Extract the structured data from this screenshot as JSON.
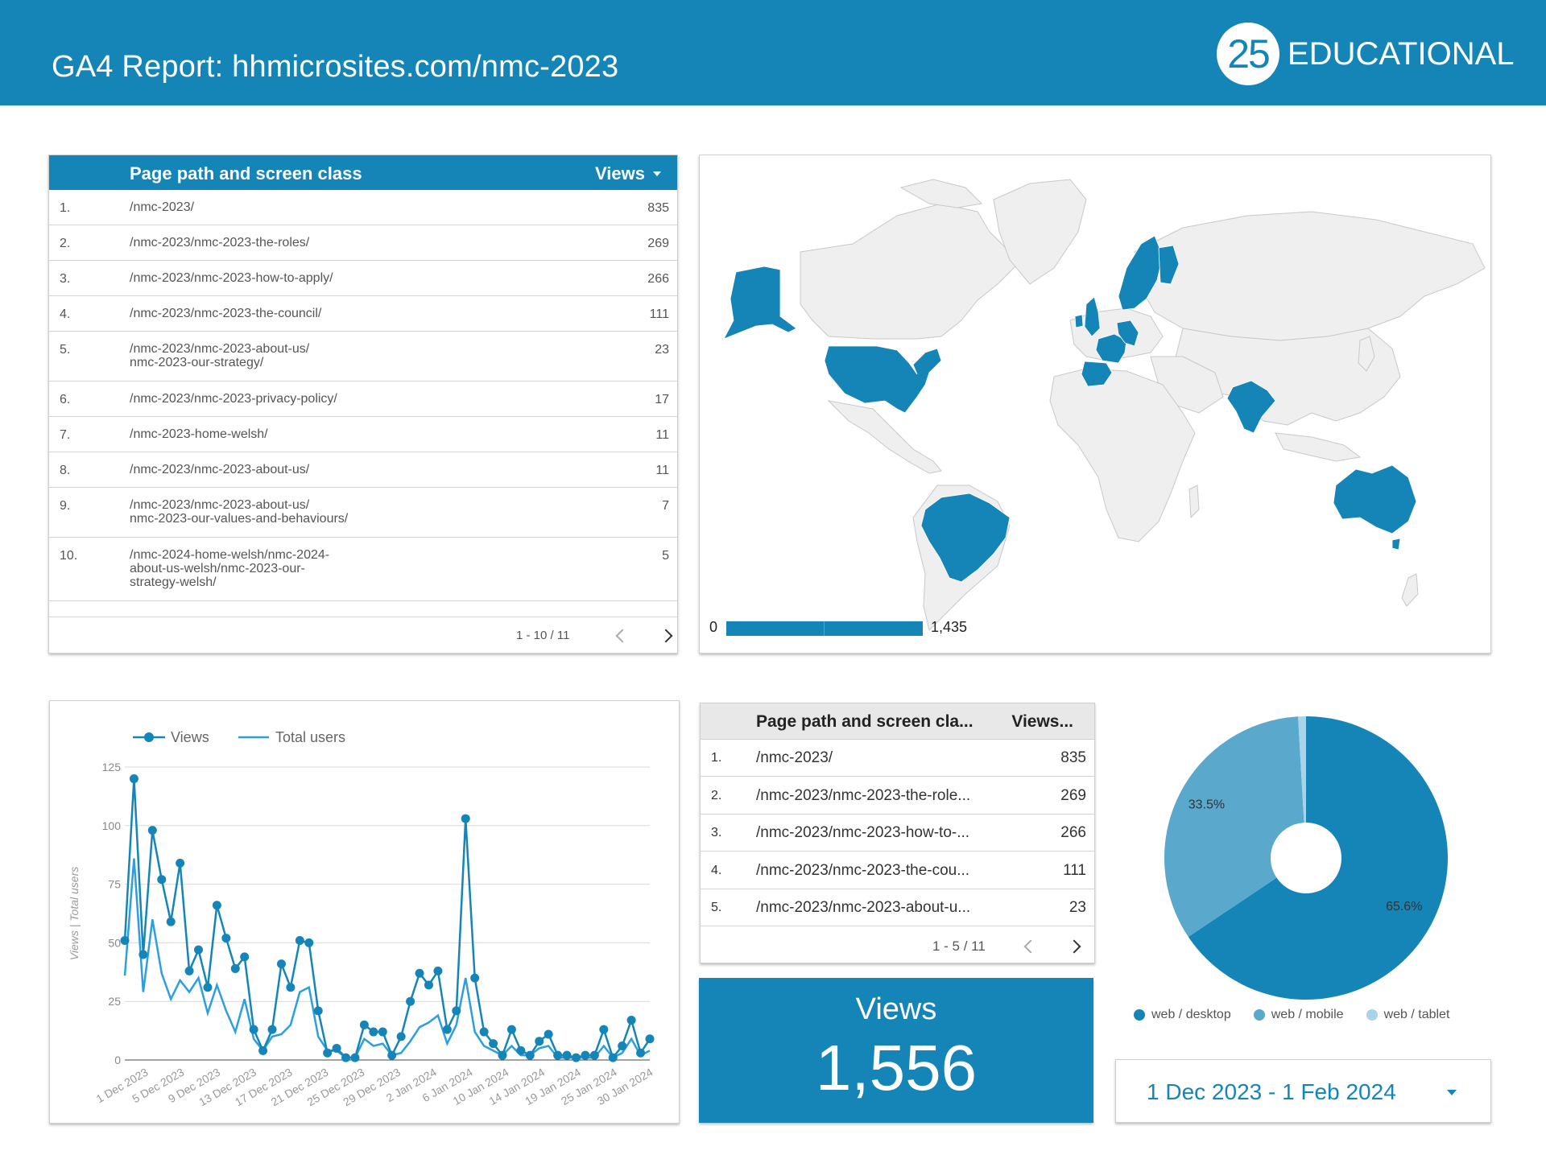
{
  "header": {
    "title": "GA4 Report: hhmicrosites.com/nmc-2023",
    "logo_number": "25",
    "logo_text": "EDUCATIONAL"
  },
  "top_pages_table": {
    "col_path": "Page path and screen class",
    "col_views": "Views",
    "rows": [
      {
        "num": "1.",
        "path": "/nmc-2023/",
        "views": "835"
      },
      {
        "num": "2.",
        "path": "/nmc-2023/nmc-2023-the-roles/",
        "views": "269"
      },
      {
        "num": "3.",
        "path": "/nmc-2023/nmc-2023-how-to-apply/",
        "views": "266"
      },
      {
        "num": "4.",
        "path": "/nmc-2023/nmc-2023-the-council/",
        "views": "111"
      },
      {
        "num": "5.",
        "path": "/nmc-2023/nmc-2023-about-us/\nnmc-2023-our-strategy/",
        "views": "23"
      },
      {
        "num": "6.",
        "path": "/nmc-2023/nmc-2023-privacy-policy/",
        "views": "17"
      },
      {
        "num": "7.",
        "path": "/nmc-2023-home-welsh/",
        "views": "11"
      },
      {
        "num": "8.",
        "path": "/nmc-2023/nmc-2023-about-us/",
        "views": "11"
      },
      {
        "num": "9.",
        "path": "/nmc-2023/nmc-2023-about-us/\nnmc-2023-our-values-and-behaviours/",
        "views": "7"
      },
      {
        "num": "10.",
        "path": "/nmc-2024-home-welsh/nmc-2024-\nabout-us-welsh/nmc-2023-our-\nstrategy-welsh/",
        "views": "5"
      }
    ],
    "pagination": "1 - 10 / 11"
  },
  "geo_map": {
    "scale_min": "0",
    "scale_max": "1,435",
    "highlight_color": "#1585b8",
    "base_color": "#efefef",
    "highlighted_regions": [
      "Alaska",
      "United States",
      "Brazil",
      "United Kingdom",
      "Ireland",
      "France",
      "Spain",
      "Portugal",
      "Belgium",
      "Netherlands",
      "Germany",
      "Norway",
      "Sweden",
      "Finland",
      "India",
      "Australia"
    ]
  },
  "chart_data": {
    "type": "line",
    "legend": [
      "Views",
      "Total users"
    ],
    "legend_position": "top-left",
    "ylabel": "Views | Total users",
    "ylim": [
      0,
      125
    ],
    "yticks": [
      0,
      25,
      50,
      75,
      100,
      125
    ],
    "grid": true,
    "x_tick_labels": [
      "1 Dec 2023",
      "5 Dec 2023",
      "9 Dec 2023",
      "13 Dec 2023",
      "17 Dec 2023",
      "21 Dec 2023",
      "25 Dec 2023",
      "29 Dec 2023",
      "2 Jan 2024",
      "6 Jan 2024",
      "10 Jan 2024",
      "14 Jan 2024",
      "19 Jan 2024",
      "25 Jan 2024",
      "30 Jan 2024"
    ],
    "series": [
      {
        "name": "Views",
        "color": "#1585b8",
        "values": [
          51,
          120,
          45,
          98,
          77,
          59,
          84,
          38,
          47,
          31,
          66,
          52,
          39,
          44,
          13,
          4,
          13,
          41,
          31,
          51,
          50,
          21,
          3,
          5,
          1,
          1,
          15,
          12,
          12,
          2,
          10,
          25,
          37,
          32,
          38,
          13,
          21,
          103,
          35,
          12,
          7,
          2,
          13,
          4,
          2,
          8,
          11,
          2,
          2,
          1,
          2,
          2,
          13,
          1,
          6,
          17,
          3,
          9
        ]
      },
      {
        "name": "Total users",
        "color": "#2d9ee0",
        "values": [
          36,
          86,
          29,
          60,
          37,
          26,
          34,
          29,
          35,
          20,
          32,
          21,
          12,
          26,
          9,
          4,
          10,
          11,
          15,
          29,
          31,
          10,
          4,
          4,
          1,
          1,
          9,
          6,
          7,
          2,
          3,
          8,
          14,
          16,
          19,
          7,
          15,
          35,
          12,
          6,
          4,
          2,
          6,
          2,
          2,
          5,
          6,
          1,
          1,
          1,
          1,
          1,
          6,
          1,
          3,
          9,
          2,
          4
        ]
      }
    ]
  },
  "pages_table_small": {
    "col_path": "Page path and screen cla...",
    "col_views": "Views...",
    "rows": [
      {
        "num": "1.",
        "path": "/nmc-2023/",
        "views": "835"
      },
      {
        "num": "2.",
        "path": "/nmc-2023/nmc-2023-the-role...",
        "views": "269"
      },
      {
        "num": "3.",
        "path": "/nmc-2023/nmc-2023-how-to-...",
        "views": "266"
      },
      {
        "num": "4.",
        "path": "/nmc-2023/nmc-2023-the-cou...",
        "views": "111"
      },
      {
        "num": "5.",
        "path": "/nmc-2023/nmc-2023-about-u...",
        "views": "23"
      }
    ],
    "pagination": "1 - 5 / 11"
  },
  "scorecard": {
    "label": "Views",
    "value": "1,556"
  },
  "device_pie": {
    "slices": [
      {
        "name": "web / desktop",
        "value": 65.6,
        "label": "65.6%",
        "color": "#1585b8"
      },
      {
        "name": "web / mobile",
        "value": 33.5,
        "label": "33.5%",
        "color": "#5aa8cc"
      },
      {
        "name": "web / tablet",
        "value": 0.9,
        "label": "",
        "color": "#a9d3e6"
      }
    ]
  },
  "date_range": {
    "value": "1 Dec 2023 - 1 Feb 2024"
  }
}
